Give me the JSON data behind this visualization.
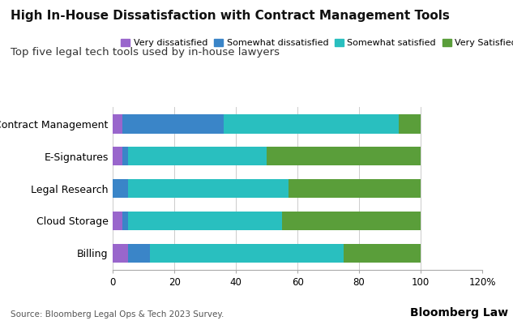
{
  "title": "High In-House Dissatisfaction with Contract Management Tools",
  "subtitle": "Top five legal tech tools used by in-house lawyers",
  "categories": [
    "Contract Management",
    "E-Signatures",
    "Legal Research",
    "Cloud Storage",
    "Billing"
  ],
  "series": {
    "Very dissatisfied": [
      3,
      3,
      0,
      3,
      5
    ],
    "Somewhat dissatisfied": [
      33,
      2,
      5,
      2,
      7
    ],
    "Somewhat satisfied": [
      57,
      45,
      52,
      50,
      63
    ],
    "Very Satisfied": [
      7,
      50,
      43,
      45,
      25
    ]
  },
  "colors": {
    "Very dissatisfied": "#9966cc",
    "Somewhat dissatisfied": "#3a85c8",
    "Somewhat satisfied": "#29bfbf",
    "Very Satisfied": "#5a9e3a"
  },
  "xlim": [
    0,
    120
  ],
  "xticks": [
    0,
    20,
    40,
    60,
    80,
    100,
    120
  ],
  "xticklabels": [
    "0",
    "20",
    "40",
    "60",
    "80",
    "100",
    "120%"
  ],
  "source": "Source: Bloomberg Legal Ops & Tech 2023 Survey.",
  "watermark": "Bloomberg Law",
  "background_color": "#ffffff"
}
